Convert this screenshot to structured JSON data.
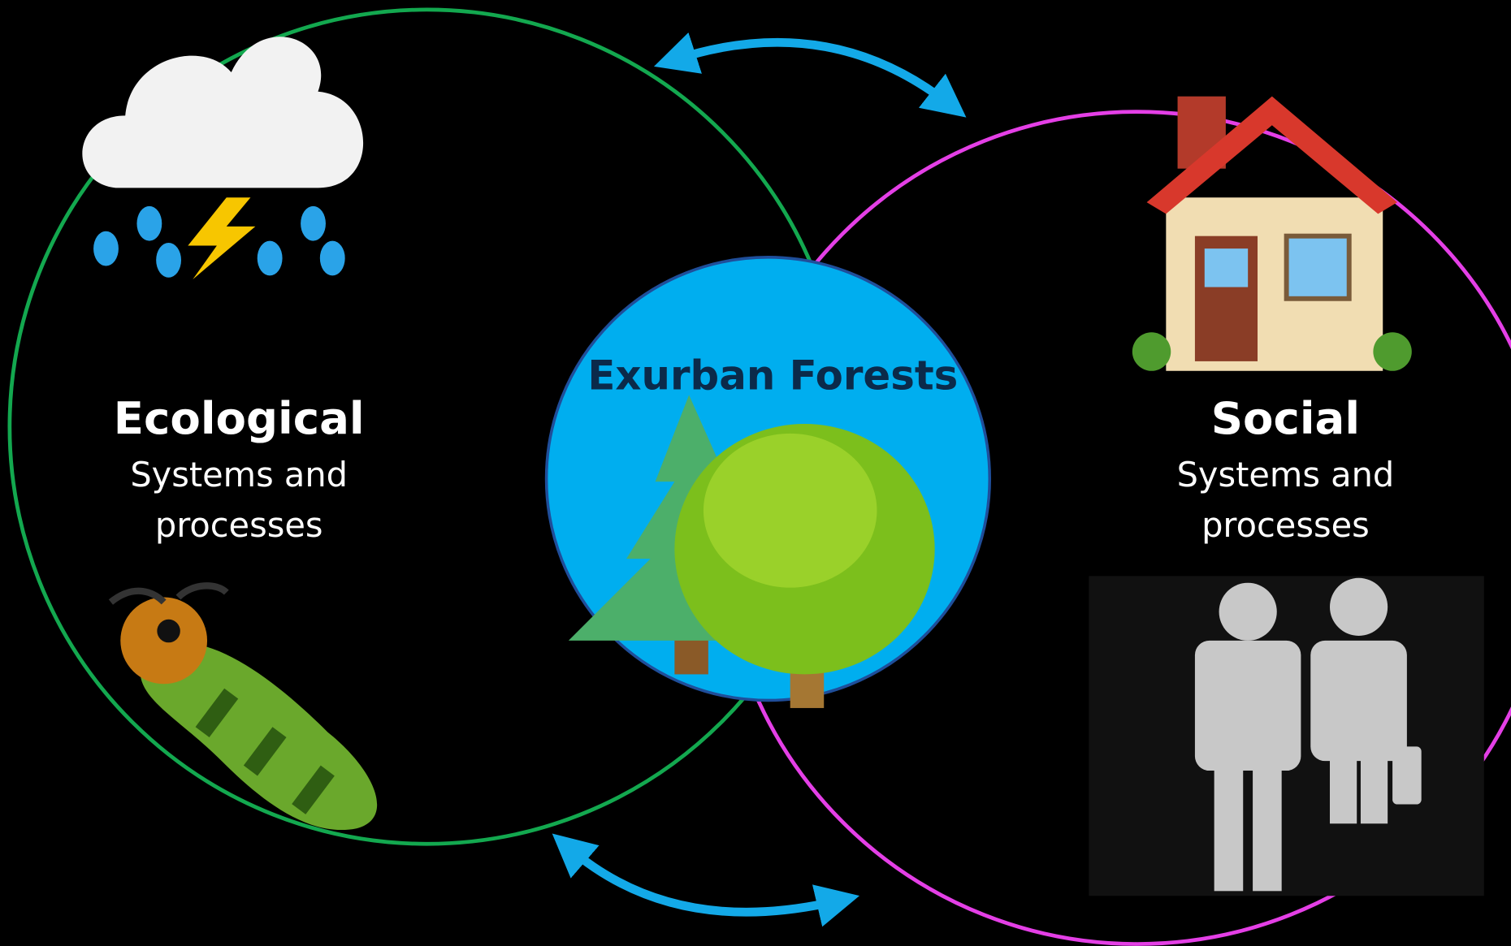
{
  "ecological": {
    "title": "Ecological",
    "lines": [
      "Systems and",
      "processes"
    ]
  },
  "social": {
    "title": "Social",
    "lines": [
      "Systems and",
      "processes"
    ]
  },
  "center": {
    "title": "Exurban Forests"
  }
}
